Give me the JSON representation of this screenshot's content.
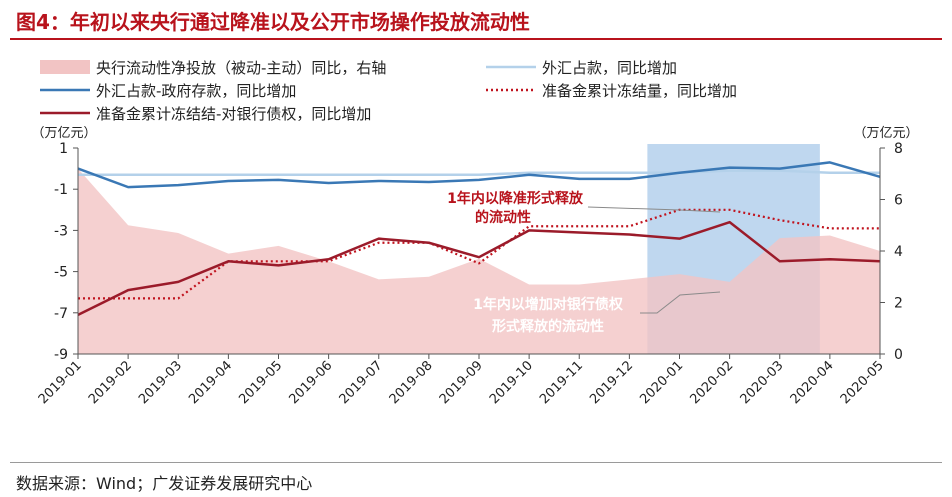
{
  "title": "图4：年初以来央行通过降准以及公开市场操作投放流动性",
  "source": "数据来源：Wind；广发证券发展研究中心",
  "colors": {
    "area": "#f2c4c4",
    "fx_cb": "#b4d1ea",
    "fx_gov": "#3a78b5",
    "reserve": "#c0131e",
    "loan": "#9b1b2a",
    "highlight": "#a9c9ea",
    "title": "#b8131c"
  },
  "chart_data": {
    "type": "line",
    "categories": [
      "2019-01",
      "2019-02",
      "2019-03",
      "2019-04",
      "2019-05",
      "2019-06",
      "2019-07",
      "2019-08",
      "2019-09",
      "2019-10",
      "2019-11",
      "2019-12",
      "2020-01",
      "2020-02",
      "2020-03",
      "2020-04",
      "2020-05"
    ],
    "left_axis": {
      "unit": "（万亿元）",
      "ylim": [
        -9,
        1
      ],
      "ticks": [
        "1",
        "-1",
        "-3",
        "-5",
        "-7",
        "-9"
      ]
    },
    "right_axis": {
      "unit": "（万亿元）",
      "ylim": [
        0,
        8
      ],
      "ticks": [
        "8",
        "6",
        "4",
        "2",
        "0"
      ]
    },
    "highlight_span": [
      "2019-12",
      "2020-04"
    ],
    "series": [
      {
        "name": "央行流动性净投放（被动-主动）同比，右轴",
        "type": "area",
        "axis": "right",
        "values": [
          7.2,
          5.0,
          4.7,
          3.9,
          4.2,
          3.6,
          2.9,
          3.0,
          3.7,
          2.7,
          2.7,
          2.9,
          3.1,
          2.8,
          4.5,
          4.6,
          4.0
        ]
      },
      {
        "name": "外汇占款，同比增加",
        "type": "line",
        "axis": "left",
        "values": [
          -0.3,
          -0.3,
          -0.3,
          -0.3,
          -0.3,
          -0.3,
          -0.3,
          -0.3,
          -0.3,
          -0.2,
          -0.2,
          -0.2,
          -0.2,
          -0.1,
          -0.1,
          -0.2,
          -0.2
        ]
      },
      {
        "name": "外汇占款-政府存款，同比增加",
        "type": "line",
        "axis": "left",
        "values": [
          0.0,
          -0.9,
          -0.8,
          -0.6,
          -0.55,
          -0.7,
          -0.6,
          -0.65,
          -0.55,
          -0.3,
          -0.5,
          -0.5,
          -0.2,
          0.05,
          0.0,
          0.3,
          -0.4
        ]
      },
      {
        "name": "准备金累计冻结量，同比增加",
        "type": "dotted",
        "axis": "left",
        "values": [
          -6.3,
          -6.3,
          -6.3,
          -4.5,
          -4.5,
          -4.5,
          -3.6,
          -3.6,
          -4.6,
          -2.8,
          -2.8,
          -2.8,
          -2.0,
          -2.0,
          -2.5,
          -2.9,
          -2.9
        ]
      },
      {
        "name": "准备金累计冻结结-对银行债权，同比增加",
        "type": "line",
        "axis": "left",
        "values": [
          -7.1,
          -5.9,
          -5.5,
          -4.5,
          -4.7,
          -4.4,
          -3.4,
          -3.6,
          -4.3,
          -3.0,
          -3.1,
          -3.2,
          -3.4,
          -2.6,
          -4.5,
          -4.4,
          -4.5
        ]
      }
    ],
    "annotations": [
      {
        "lines": [
          "1年内以降准形式释放",
          "的流动性"
        ],
        "color": "#b8131c"
      },
      {
        "lines": [
          "1年内以增加对银行债权",
          "形式释放的流动性"
        ],
        "color": "#ffffff"
      }
    ]
  }
}
